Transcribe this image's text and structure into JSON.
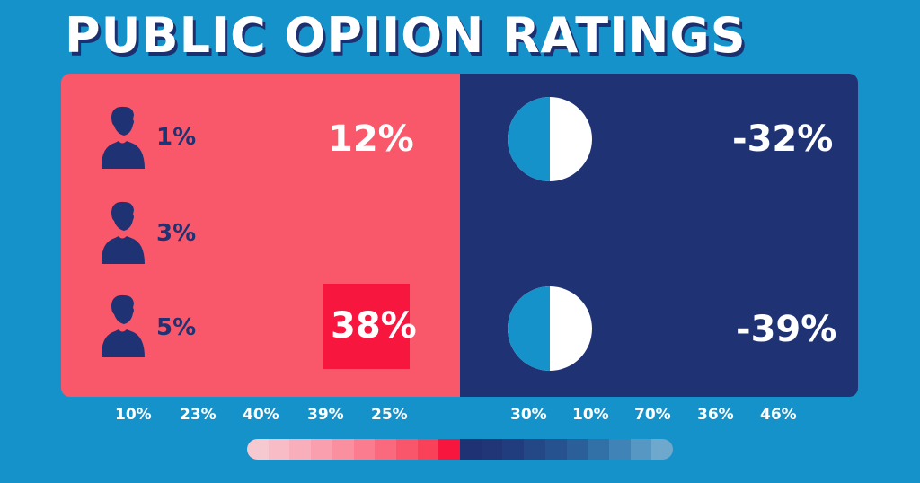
{
  "title": "PUBLIC OPIION RATINGS",
  "left_rows": [
    {
      "icon": "person-icon",
      "small_pct": "1%",
      "big_pct": "12%"
    },
    {
      "icon": "person-icon",
      "small_pct": "3%",
      "big_pct": ""
    },
    {
      "icon": "person-icon",
      "small_pct": "5%",
      "big_pct": "38%"
    }
  ],
  "right_rows": [
    {
      "icon": "half-pie-icon",
      "pct": "-32%"
    },
    {
      "icon": "half-pie-icon",
      "pct": "-39%"
    }
  ],
  "axis_left": [
    "10%",
    "23%",
    "40%",
    "39%",
    "25%"
  ],
  "axis_right": [
    "30%",
    "10%",
    "70%",
    "36%",
    "46%"
  ],
  "colors": {
    "background": "#1592c9",
    "left_panel": "#f9576a",
    "right_panel": "#1f3274",
    "highlight": "#f6163e",
    "text_dark": "#1f3274",
    "text_light": "#ffffff"
  }
}
